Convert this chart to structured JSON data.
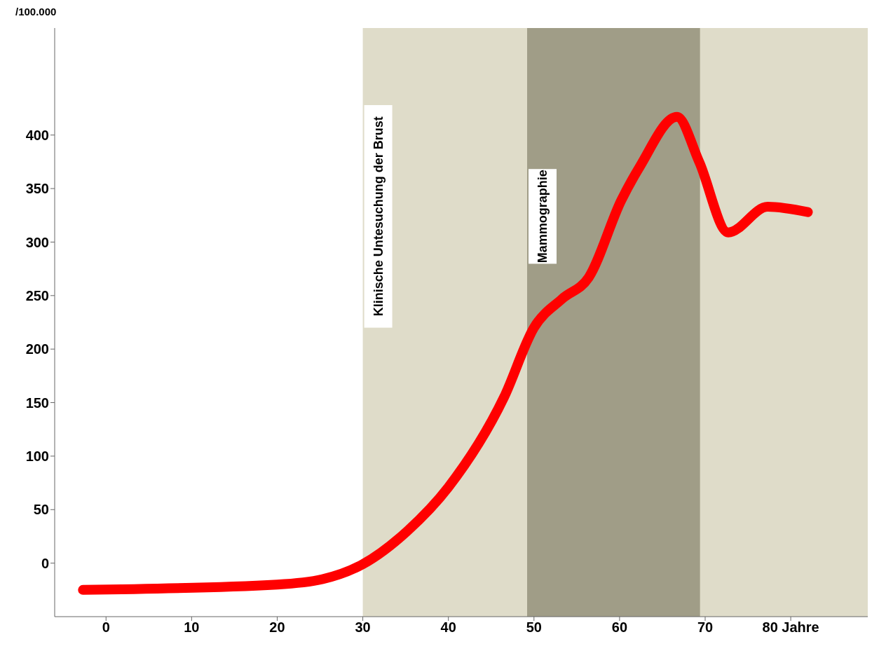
{
  "chart_data": {
    "type": "line",
    "ylabel": "/100.000",
    "x": [
      -2.7,
      20,
      25.3,
      30,
      35.2,
      40,
      46.5,
      50,
      53.3,
      56.4,
      60.2,
      62.4,
      66.7,
      69.3,
      72.7,
      77.3,
      82
    ],
    "series": [
      {
        "color": "#ff0000",
        "values": [
          -25,
          -20,
          -15,
          -1,
          30,
          71,
          155,
          220,
          247,
          267,
          339,
          371,
          417,
          375,
          309,
          333,
          328
        ]
      }
    ],
    "xlim": [
      -6,
      89
    ],
    "xticks": [
      0,
      10,
      20,
      30,
      40,
      50,
      60,
      70,
      {
        "value": 80,
        "label": "80 Jahre"
      }
    ],
    "ylim": [
      -50,
      500
    ],
    "yticks": [
      0,
      50,
      100,
      150,
      200,
      250,
      300,
      350,
      400
    ],
    "bands": [
      {
        "axis": "x",
        "from": 30,
        "to": 89,
        "color": "#dfdcc9",
        "label": "Klinische Untesuchung der Brust"
      },
      {
        "axis": "x",
        "from": 49.2,
        "to": 69.4,
        "color": "#a09d87",
        "label": "Mammographie"
      }
    ],
    "grid": false,
    "legend": false,
    "marker": "none",
    "line_style": "solid"
  }
}
